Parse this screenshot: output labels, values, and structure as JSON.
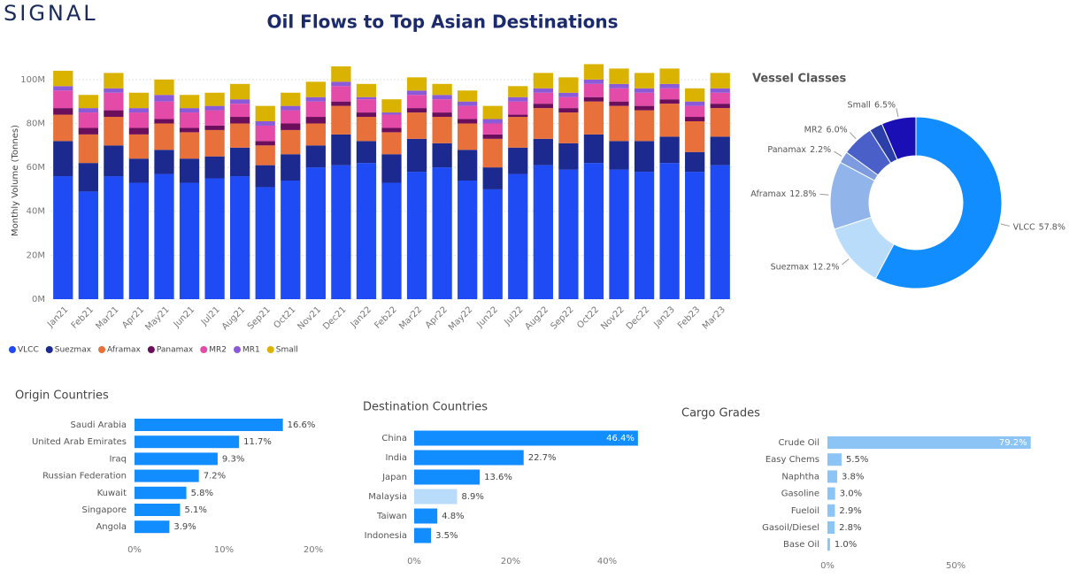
{
  "header": {
    "logo": "SIGNAL",
    "title": "Oil Flows to Top Asian Destinations"
  },
  "chart_data": [
    {
      "type": "stacked_bar",
      "y_label": "Monthly Volume (Tonnes)",
      "categories": [
        "Jan21",
        "Feb21",
        "Mar21",
        "Apr21",
        "May21",
        "Jun21",
        "Jul21",
        "Aug21",
        "Sep21",
        "Oct21",
        "Nov21",
        "Dec21",
        "Jan22",
        "Feb22",
        "Mar22",
        "Apr22",
        "May22",
        "Jun22",
        "Jul22",
        "Aug22",
        "Sep22",
        "Oct22",
        "Nov22",
        "Dec22",
        "Jan23",
        "Feb23",
        "Mar23"
      ],
      "ylim": [
        0,
        108000000
      ],
      "yticks": [
        {
          "value": 0,
          "label": "0M"
        },
        {
          "value": 20000000,
          "label": "20M"
        },
        {
          "value": 40000000,
          "label": "40M"
        },
        {
          "value": 60000000,
          "label": "60M"
        },
        {
          "value": 80000000,
          "label": "80M"
        },
        {
          "value": 100000000,
          "label": "100M"
        }
      ],
      "grid": true,
      "series": [
        {
          "name": "VLCC",
          "color": "#1f4bf5",
          "values": [
            56000000,
            49000000,
            56000000,
            53000000,
            57000000,
            53000000,
            55000000,
            56000000,
            51000000,
            54000000,
            60000000,
            61000000,
            62000000,
            53000000,
            58000000,
            60000000,
            54000000,
            50000000,
            57000000,
            61000000,
            59000000,
            62000000,
            59000000,
            58000000,
            62000000,
            58000000,
            61000000
          ]
        },
        {
          "name": "Suezmax",
          "color": "#1c2a8f",
          "values": [
            16000000,
            13000000,
            14000000,
            11000000,
            11000000,
            11000000,
            10000000,
            13000000,
            10000000,
            12000000,
            10000000,
            14000000,
            10000000,
            13000000,
            15000000,
            11000000,
            14000000,
            10000000,
            12000000,
            12000000,
            12000000,
            13000000,
            13000000,
            14000000,
            12000000,
            9000000,
            13000000
          ]
        },
        {
          "name": "Aframax",
          "color": "#e8703a",
          "values": [
            12000000,
            13000000,
            13000000,
            11000000,
            12000000,
            12000000,
            12000000,
            11000000,
            9000000,
            11000000,
            10000000,
            13000000,
            11000000,
            10000000,
            12000000,
            12000000,
            12000000,
            13000000,
            14000000,
            14000000,
            14000000,
            15000000,
            16000000,
            14000000,
            15000000,
            14000000,
            13000000
          ]
        },
        {
          "name": "Panamax",
          "color": "#6b0f5c",
          "values": [
            3000000,
            3000000,
            3000000,
            3000000,
            2000000,
            2000000,
            2000000,
            3000000,
            2000000,
            3000000,
            3000000,
            2000000,
            2000000,
            2000000,
            2000000,
            2000000,
            2000000,
            2000000,
            1000000,
            2000000,
            2000000,
            2000000,
            2000000,
            2000000,
            2000000,
            2000000,
            2000000
          ]
        },
        {
          "name": "MR2",
          "color": "#e44aa8",
          "values": [
            8000000,
            7000000,
            8000000,
            7000000,
            8000000,
            7000000,
            7000000,
            6000000,
            7000000,
            6000000,
            7000000,
            7000000,
            6000000,
            6000000,
            6000000,
            6000000,
            6000000,
            5000000,
            6000000,
            5000000,
            5000000,
            6000000,
            6000000,
            6000000,
            5000000,
            5000000,
            5000000
          ]
        },
        {
          "name": "MR1",
          "color": "#8a5ad8",
          "values": [
            2000000,
            2000000,
            2000000,
            2000000,
            3000000,
            2000000,
            2000000,
            2000000,
            2000000,
            2000000,
            2000000,
            2000000,
            1000000,
            1000000,
            2000000,
            2000000,
            2000000,
            2000000,
            2000000,
            2000000,
            2000000,
            2000000,
            2000000,
            2000000,
            2000000,
            2000000,
            2000000
          ]
        },
        {
          "name": "Small",
          "color": "#d9b300",
          "values": [
            7000000,
            6000000,
            7000000,
            7000000,
            7000000,
            6000000,
            6000000,
            7000000,
            7000000,
            6000000,
            7000000,
            7000000,
            6000000,
            6000000,
            6000000,
            5000000,
            5000000,
            6000000,
            5000000,
            7000000,
            7000000,
            7000000,
            7000000,
            7000000,
            7000000,
            6000000,
            7000000
          ]
        }
      ]
    },
    {
      "type": "pie",
      "donut": true,
      "title": "Vessel Classes",
      "categories": [
        "VLCC",
        "Suezmax",
        "Aframax",
        "Panamax",
        "MR2",
        "MR1",
        "Small"
      ],
      "values": [
        57.8,
        12.2,
        12.8,
        2.2,
        6.0,
        2.5,
        6.5
      ],
      "value_labels": [
        "57.8%",
        "12.2%",
        "12.8%",
        "2.2%",
        "6.0%",
        null,
        "6.5%"
      ],
      "colors": [
        "#118dff",
        "#b9dcfb",
        "#91b5ea",
        "#7f9be0",
        "#4a60c8",
        "#2c3fa8",
        "#1a0fb5"
      ]
    },
    {
      "type": "bar",
      "horizontal": true,
      "title": "Origin Countries",
      "categories": [
        "Saudi Arabia",
        "United Arab Emirates",
        "Iraq",
        "Russian Federation",
        "Kuwait",
        "Singapore",
        "Angola"
      ],
      "values": [
        16.6,
        11.7,
        9.3,
        7.2,
        5.8,
        5.1,
        3.9
      ],
      "value_labels": [
        "16.6%",
        "11.7%",
        "9.3%",
        "7.2%",
        "5.8%",
        "5.1%",
        "3.9%"
      ],
      "color": "#118dff",
      "xlim": [
        0,
        20
      ],
      "xticks": [
        {
          "value": 0,
          "label": "0%"
        },
        {
          "value": 10,
          "label": "10%"
        },
        {
          "value": 20,
          "label": "20%"
        }
      ]
    },
    {
      "type": "bar",
      "horizontal": true,
      "title": "Destination Countries",
      "categories": [
        "China",
        "India",
        "Japan",
        "Malaysia",
        "Taiwan",
        "Indonesia"
      ],
      "values": [
        46.4,
        22.7,
        13.6,
        8.9,
        4.8,
        3.5
      ],
      "value_labels": [
        "46.4%",
        "22.7%",
        "13.6%",
        "8.9%",
        "4.8%",
        "3.5%"
      ],
      "colors": [
        "#118dff",
        "#118dff",
        "#118dff",
        "#b9dcfb",
        "#118dff",
        "#118dff"
      ],
      "xlim": [
        0,
        48
      ],
      "xticks": [
        {
          "value": 0,
          "label": "0%"
        },
        {
          "value": 20,
          "label": "20%"
        },
        {
          "value": 40,
          "label": "40%"
        }
      ]
    },
    {
      "type": "bar",
      "horizontal": true,
      "title": "Cargo Grades",
      "categories": [
        "Crude Oil",
        "Easy Chems",
        "Naphtha",
        "Gasoline",
        "Fueloil",
        "Gasoil/Diesel",
        "Base Oil"
      ],
      "values": [
        79.2,
        5.5,
        3.8,
        3.0,
        2.9,
        2.8,
        1.0
      ],
      "value_labels": [
        "79.2%",
        "5.5%",
        "3.8%",
        "3.0%",
        "2.9%",
        "2.8%",
        "1.0%"
      ],
      "color": "#8cc4f5",
      "xlim": [
        0,
        80
      ],
      "xticks": [
        {
          "value": 0,
          "label": "0%"
        },
        {
          "value": 50,
          "label": "50%"
        }
      ]
    }
  ]
}
